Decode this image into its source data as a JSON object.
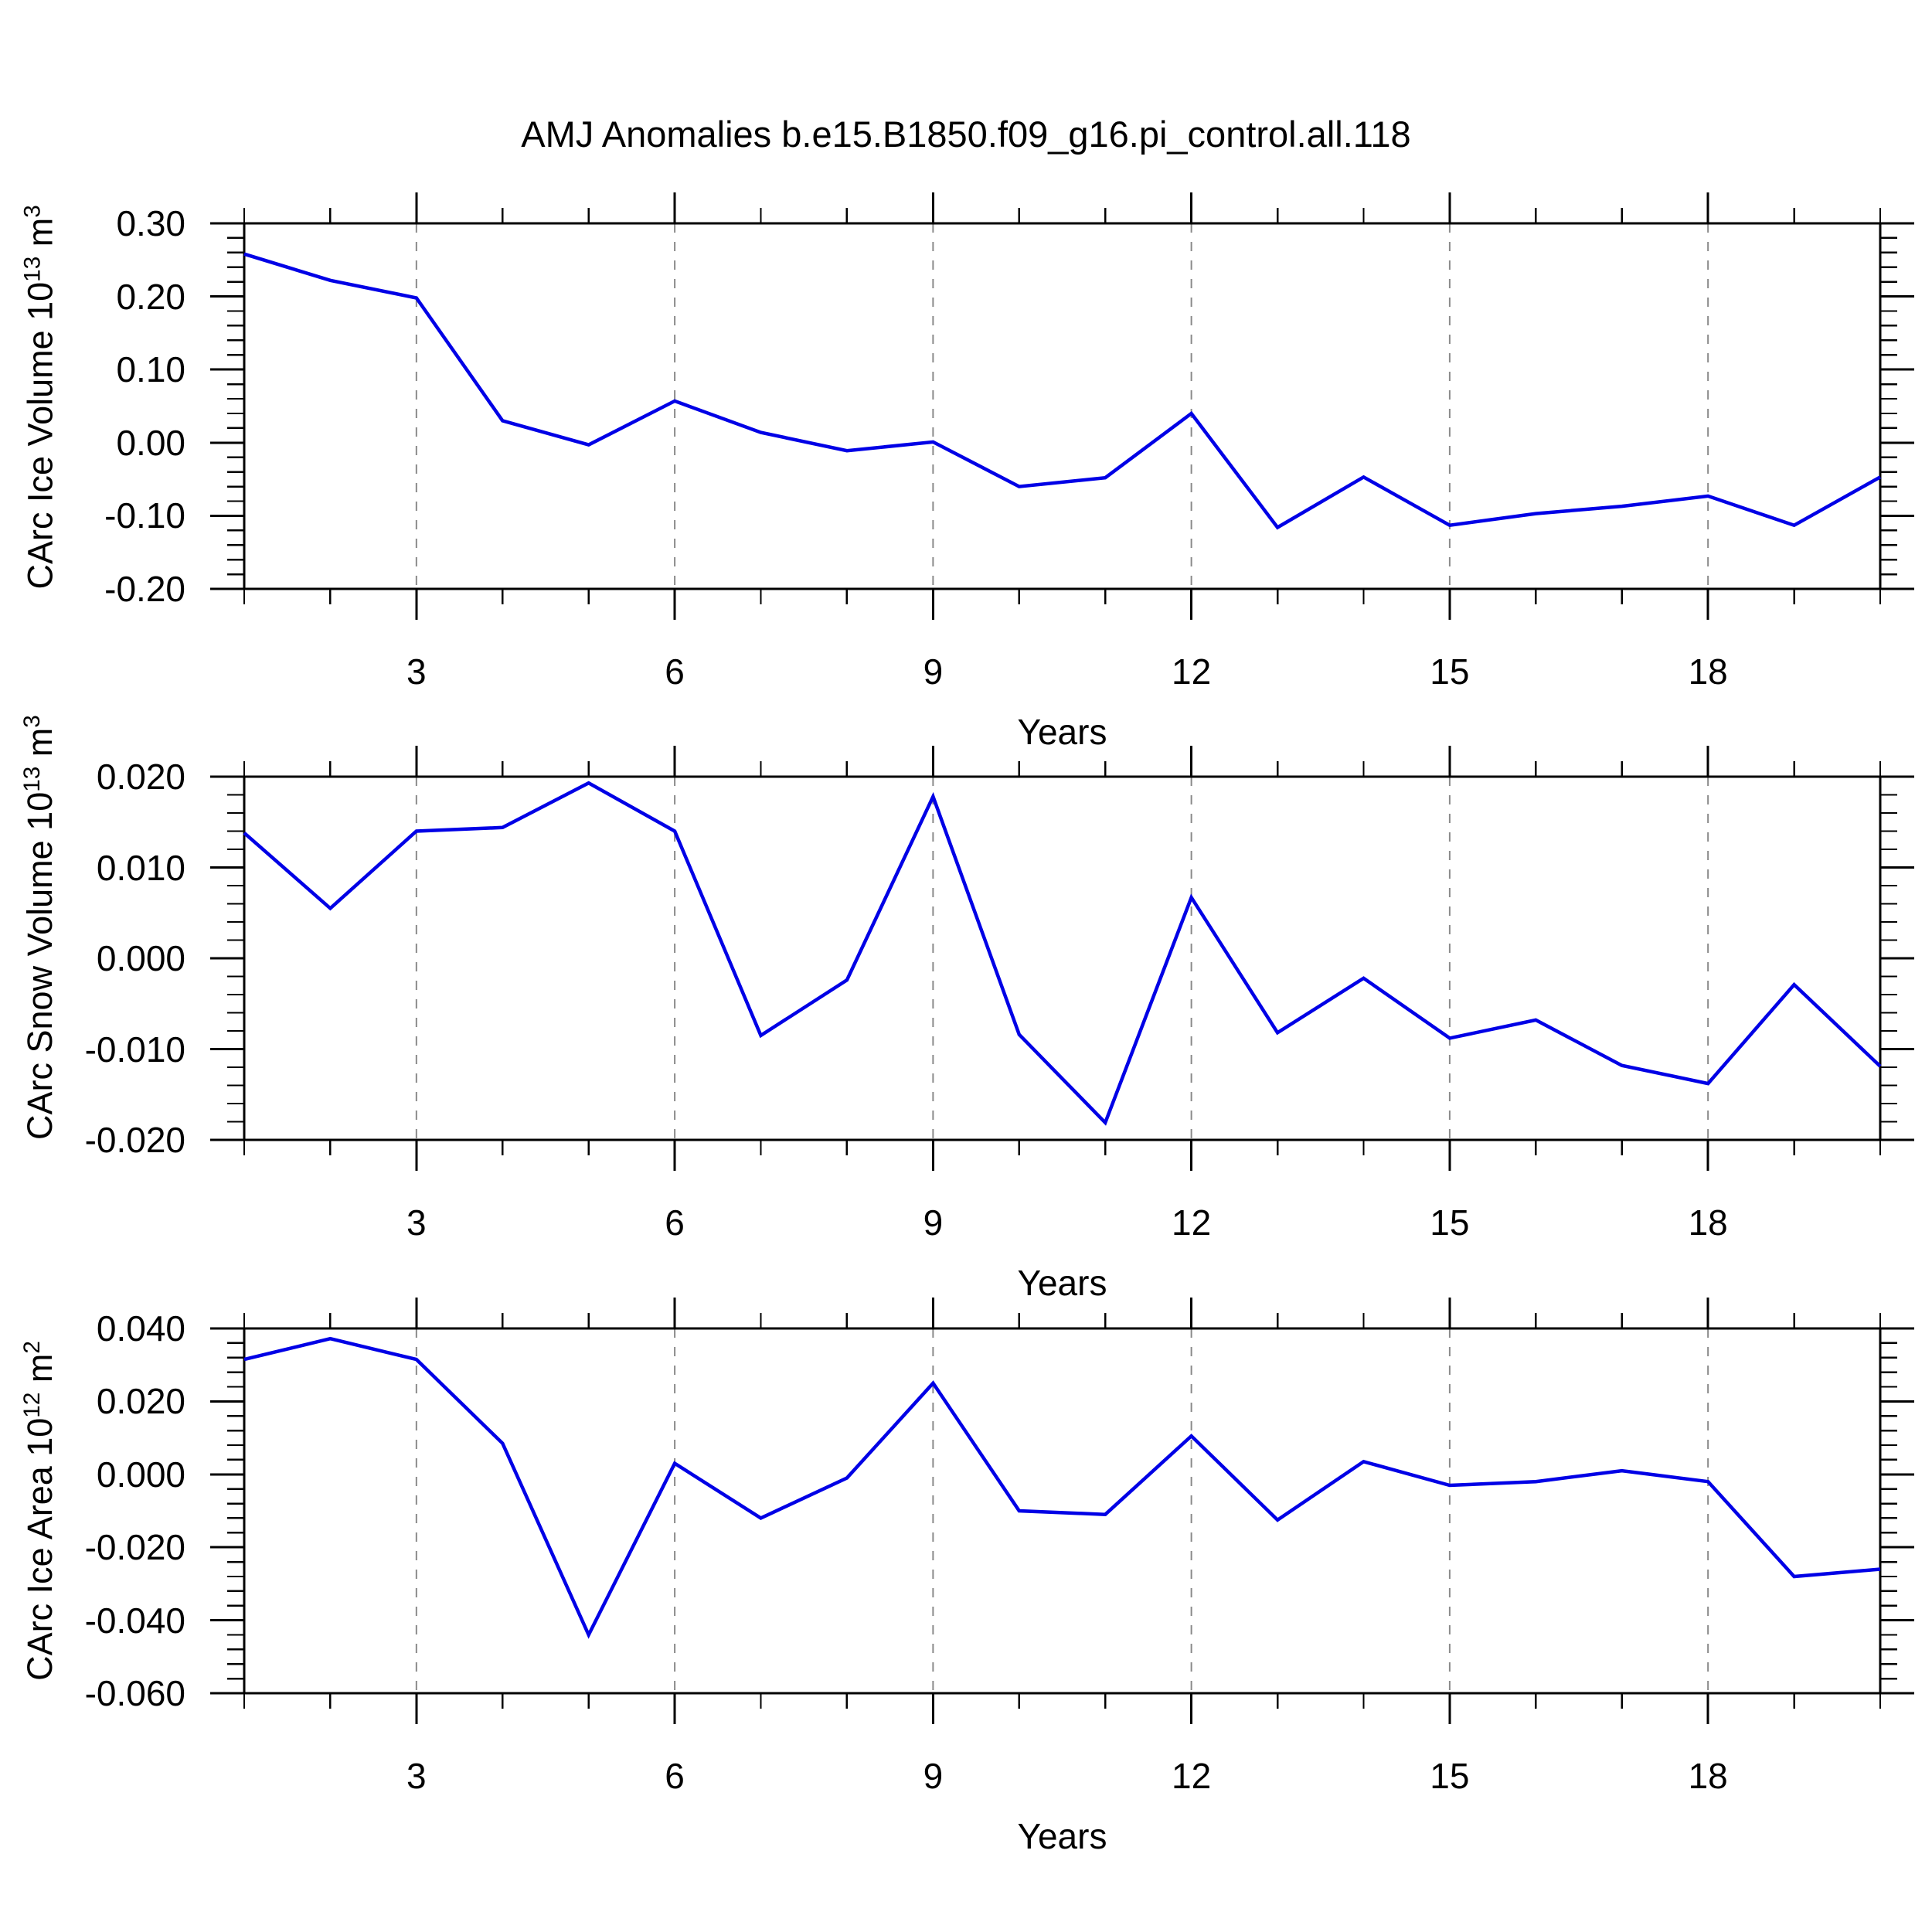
{
  "title": "AMJ Anomalies b.e15.B1850.f09_g16.pi_control.all.118",
  "line_color": "#0000E6",
  "gridline_color": "#8a8a8a",
  "axis_color": "#000000",
  "background_color": "#ffffff",
  "chart_data": [
    {
      "id": "ice-volume",
      "type": "line",
      "xlabel": "Years",
      "ylabel_segments": [
        {
          "text": "CArc Ice Volume 10"
        },
        {
          "text": "13",
          "sup": true
        },
        {
          "text": " m"
        },
        {
          "text": "3",
          "sup": true
        }
      ],
      "x": [
        1,
        2,
        3,
        4,
        5,
        6,
        7,
        8,
        9,
        10,
        11,
        12,
        13,
        14,
        15,
        16,
        17,
        18,
        19,
        20
      ],
      "values": [
        0.258,
        0.222,
        0.198,
        0.03,
        -0.003,
        0.057,
        0.014,
        -0.011,
        0.001,
        -0.06,
        -0.048,
        0.04,
        -0.116,
        -0.047,
        -0.113,
        -0.097,
        -0.087,
        -0.073,
        -0.113,
        -0.047
      ],
      "xlim": [
        1,
        20
      ],
      "ylim": [
        -0.2,
        0.3
      ],
      "xticks": {
        "major": [
          3,
          6,
          9,
          12,
          15,
          18
        ],
        "labels": [
          "3",
          "6",
          "9",
          "12",
          "15",
          "18"
        ],
        "minor_step": 1
      },
      "yticks": {
        "major": [
          0.3,
          0.2,
          0.1,
          0.0,
          -0.1,
          -0.2
        ],
        "labels": [
          "0.30",
          "0.20",
          "0.10",
          "0.00",
          "-0.10",
          "-0.20"
        ],
        "minor_step": 0.02
      },
      "grid": "vertical-dashed-at-major-xticks",
      "legend": "none"
    },
    {
      "id": "snow-volume",
      "type": "line",
      "xlabel": "Years",
      "ylabel_segments": [
        {
          "text": "CArc Snow Volume 10"
        },
        {
          "text": "13",
          "sup": true
        },
        {
          "text": " m"
        },
        {
          "text": "3",
          "sup": true
        }
      ],
      "x": [
        1,
        2,
        3,
        4,
        5,
        6,
        7,
        8,
        9,
        10,
        11,
        12,
        13,
        14,
        15,
        16,
        17,
        18,
        19,
        20
      ],
      "values": [
        0.0138,
        0.0055,
        0.014,
        0.0144,
        0.0193,
        0.014,
        -0.0085,
        -0.0024,
        0.0178,
        -0.0084,
        -0.0181,
        0.0067,
        -0.0082,
        -0.0022,
        -0.0088,
        -0.0068,
        -0.0118,
        -0.0138,
        -0.0029,
        -0.0119
      ],
      "xlim": [
        1,
        20
      ],
      "ylim": [
        -0.02,
        0.02
      ],
      "xticks": {
        "major": [
          3,
          6,
          9,
          12,
          15,
          18
        ],
        "labels": [
          "3",
          "6",
          "9",
          "12",
          "15",
          "18"
        ],
        "minor_step": 1
      },
      "yticks": {
        "major": [
          0.02,
          0.01,
          0.0,
          -0.01,
          -0.02
        ],
        "labels": [
          "0.020",
          "0.010",
          "0.000",
          "-0.010",
          "-0.020"
        ],
        "minor_step": 0.002
      },
      "grid": "vertical-dashed-at-major-xticks",
      "legend": "none"
    },
    {
      "id": "ice-area",
      "type": "line",
      "xlabel": "Years",
      "ylabel_segments": [
        {
          "text": "CArc Ice Area 10"
        },
        {
          "text": "12",
          "sup": true
        },
        {
          "text": " m"
        },
        {
          "text": "2",
          "sup": true
        }
      ],
      "x": [
        1,
        2,
        3,
        4,
        5,
        6,
        7,
        8,
        9,
        10,
        11,
        12,
        13,
        14,
        15,
        16,
        17,
        18,
        19,
        20
      ],
      "values": [
        0.0315,
        0.0372,
        0.0315,
        0.0085,
        -0.044,
        0.003,
        -0.012,
        -0.001,
        0.025,
        -0.01,
        -0.011,
        0.0105,
        -0.0125,
        0.0035,
        -0.003,
        -0.002,
        0.001,
        -0.002,
        -0.028,
        -0.026
      ],
      "xlim": [
        1,
        20
      ],
      "ylim": [
        -0.06,
        0.04
      ],
      "xticks": {
        "major": [
          3,
          6,
          9,
          12,
          15,
          18
        ],
        "labels": [
          "3",
          "6",
          "9",
          "12",
          "15",
          "18"
        ],
        "minor_step": 1
      },
      "yticks": {
        "major": [
          0.04,
          0.02,
          0.0,
          -0.02,
          -0.04,
          -0.06
        ],
        "labels": [
          "0.040",
          "0.020",
          "0.000",
          "-0.020",
          "-0.040",
          "-0.060"
        ],
        "minor_step": 0.004
      },
      "grid": "vertical-dashed-at-major-xticks",
      "legend": "none"
    }
  ]
}
